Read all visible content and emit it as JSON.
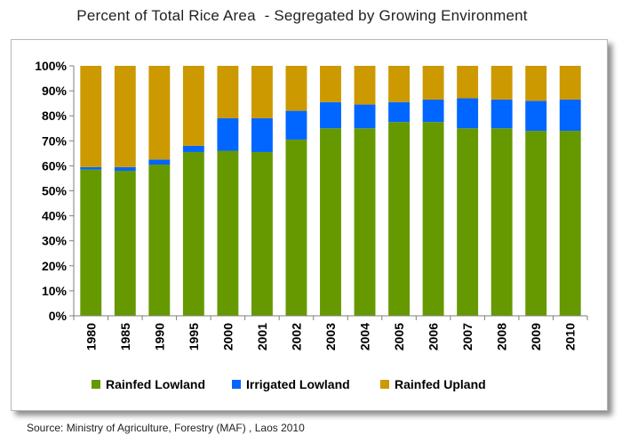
{
  "page": {
    "title": "Percent of Total Rice Area  - Segregated by Growing Environment",
    "source": "Source: Ministry of Agriculture, Forestry (MAF) , Laos 2010"
  },
  "chart_data": {
    "type": "bar",
    "stacked": true,
    "normalized_percent": true,
    "title": "Percent of Total Rice Area  - Segregated by Growing Environment",
    "xlabel": "",
    "ylabel": "",
    "categories": [
      "1980",
      "1985",
      "1990",
      "1995",
      "2000",
      "2001",
      "2002",
      "2003",
      "2004",
      "2005",
      "2006",
      "2007",
      "2008",
      "2009",
      "2010"
    ],
    "series": [
      {
        "name": "Rainfed Lowland",
        "color": "#669900",
        "values": [
          58.5,
          58,
          60.5,
          65.5,
          66,
          65.5,
          70.5,
          75,
          75,
          77.5,
          77.5,
          75,
          75,
          74,
          74
        ]
      },
      {
        "name": "Irrigated Lowland",
        "color": "#0066ff",
        "values": [
          1,
          1.5,
          2,
          2.5,
          13,
          13.5,
          11.5,
          10.5,
          9.5,
          8,
          9,
          12,
          11.5,
          12,
          12.5
        ]
      },
      {
        "name": "Rainfed Upland",
        "color": "#cc9900",
        "values": [
          40.5,
          40.5,
          37.5,
          32,
          21,
          21,
          18,
          14.5,
          15.5,
          14.5,
          13.5,
          13,
          13.5,
          14,
          13.5
        ]
      }
    ],
    "ylim": [
      0,
      100
    ],
    "yticks": [
      "0%",
      "10%",
      "20%",
      "30%",
      "40%",
      "50%",
      "60%",
      "70%",
      "80%",
      "90%",
      "100%"
    ],
    "grid": false,
    "legend_position": "bottom"
  }
}
